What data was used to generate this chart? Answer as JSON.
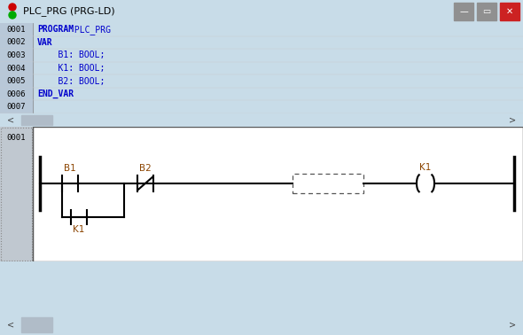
{
  "title": "PLC_PRG (PRG-LD)",
  "window_bg": "#c8dce8",
  "titlebar_bg": "#dce8f0",
  "code_bg": "#f0f8ff",
  "code_lines": [
    {
      "num": "0001",
      "text": "PROGRAM PLC_PRG",
      "kw": "PROGRAM"
    },
    {
      "num": "0002",
      "text": "VAR",
      "kw": "VAR"
    },
    {
      "num": "0003",
      "text": "    B1: BOOL;",
      "kw": ""
    },
    {
      "num": "0004",
      "text": "    K1: BOOL;",
      "kw": ""
    },
    {
      "num": "0005",
      "text": "    B2: BOOL;",
      "kw": ""
    },
    {
      "num": "0006",
      "text": "END_VAR",
      "kw": "END_VAR"
    },
    {
      "num": "0007",
      "text": "",
      "kw": ""
    }
  ],
  "line_num_bg": "#b8c8d8",
  "line_num_color": "#000000",
  "code_text_color": "#0000cc",
  "ladder_bg": "#ffffff",
  "ladder_label_color": "#8b4400",
  "rung_label": "0001",
  "rung_bg": "#c0c8d0",
  "contact_NO_label": "B1",
  "contact_NC_label": "B2",
  "contact_parallel_label": "K1",
  "coil_label": "K1",
  "scrollbar_bg": "#d0dce8",
  "scrollbar_thumb": "#b0bcc8",
  "bottom_empty_bg": "#c8dce8",
  "title_icon_red": "#cc0000",
  "title_icon_green": "#00aa00",
  "btn_min_bg": "#909090",
  "btn_max_bg": "#909090",
  "btn_close_bg": "#cc2222"
}
